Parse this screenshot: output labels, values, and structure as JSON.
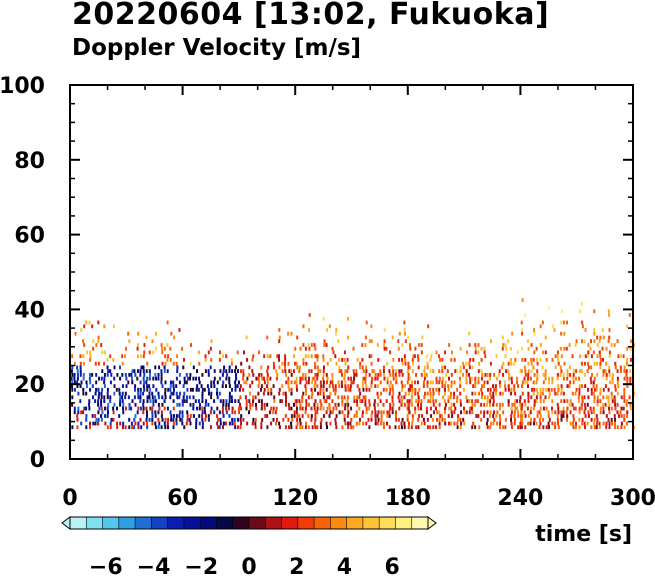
{
  "title": "20220604 [13:02, Fukuoka]",
  "subtitle": "Doppler Velocity [m/s]",
  "chart_data": {
    "type": "heatmap",
    "title": "20220604 [13:02, Fukuoka]",
    "subtitle": "Doppler Velocity [m/s]",
    "xlabel": "time [s]",
    "ylabel": "",
    "xlim": [
      0,
      300
    ],
    "ylim": [
      0,
      100
    ],
    "x_ticks": [
      0,
      60,
      120,
      180,
      240,
      300
    ],
    "y_ticks": [
      0,
      20,
      40,
      60,
      80,
      100
    ],
    "x_tick_labels": [
      "0",
      "60",
      "120",
      "180",
      "240",
      "300"
    ],
    "y_tick_labels": [
      "0",
      "20",
      "40",
      "60",
      "80",
      "100"
    ],
    "grid": false,
    "time_bins": [
      {
        "t_start": 0,
        "t_end": 60,
        "height_min": 8,
        "height_max": 43,
        "dominant_velocity": -2.5
      },
      {
        "t_start": 60,
        "t_end": 90,
        "height_min": 8,
        "height_max": 36,
        "dominant_velocity": -2.0
      },
      {
        "t_start": 90,
        "t_end": 120,
        "height_min": 8,
        "height_max": 40,
        "dominant_velocity": 1.5
      },
      {
        "t_start": 120,
        "t_end": 180,
        "height_min": 8,
        "height_max": 44,
        "dominant_velocity": 2.0
      },
      {
        "t_start": 180,
        "t_end": 240,
        "height_min": 8,
        "height_max": 40,
        "dominant_velocity": 2.5
      },
      {
        "t_start": 240,
        "t_end": 300,
        "height_min": 8,
        "height_max": 48,
        "dominant_velocity": 2.5
      }
    ],
    "colorbar": {
      "min": -7.5,
      "max": 7.5,
      "tick_values": [
        -6,
        -4,
        -2,
        0,
        2,
        4,
        6
      ],
      "tick_labels": [
        "−6",
        "−4",
        "−2",
        "0",
        "2",
        "4",
        "6"
      ],
      "colors": [
        "#b9f3f3",
        "#7fe3ef",
        "#55c6ec",
        "#2e9ee5",
        "#1f6fd6",
        "#1440c4",
        "#0a1db0",
        "#07109a",
        "#050a7a",
        "#060848",
        "#300420",
        "#6a0a1a",
        "#b01018",
        "#e01a10",
        "#f23c08",
        "#f76508",
        "#fa8a10",
        "#fcaa20",
        "#fdc436",
        "#fedc5a",
        "#fff080",
        "#fff8b0"
      ]
    }
  }
}
